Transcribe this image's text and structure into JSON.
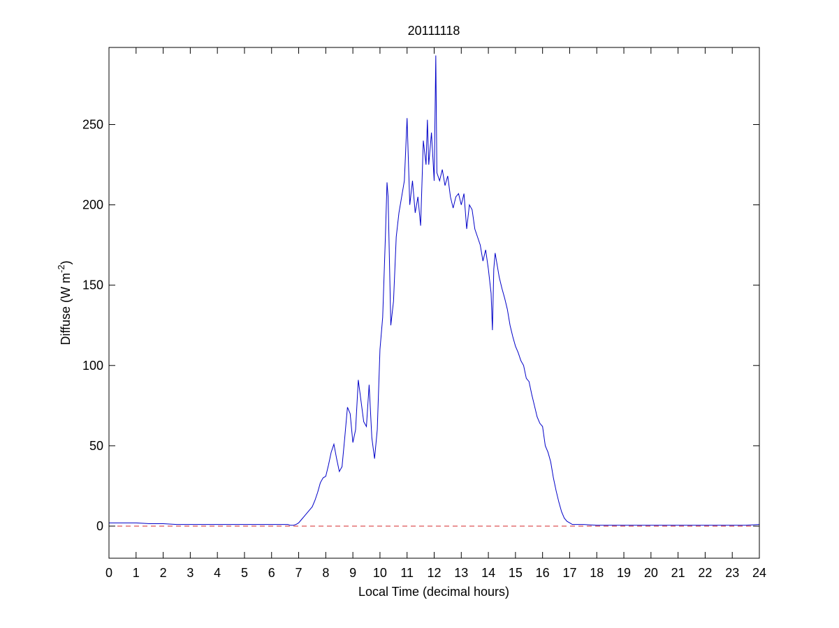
{
  "chart_data": {
    "type": "line",
    "title": "20111118",
    "xlabel": "Local Time (decimal hours)",
    "ylabel": {
      "text": "Diffuse (W m",
      "sup": "-2",
      "end": ")"
    },
    "x": [
      0,
      0.5,
      1,
      1.5,
      2,
      2.5,
      3,
      3.5,
      4,
      4.5,
      5,
      5.5,
      6,
      6.5,
      6.6,
      6.7,
      6.8,
      6.9,
      7,
      7.1,
      7.2,
      7.3,
      7.4,
      7.5,
      7.6,
      7.7,
      7.8,
      7.9,
      8,
      8.1,
      8.2,
      8.3,
      8.4,
      8.5,
      8.6,
      8.7,
      8.8,
      8.9,
      9,
      9.1,
      9.2,
      9.3,
      9.4,
      9.5,
      9.6,
      9.7,
      9.8,
      9.9,
      10,
      10.1,
      10.2,
      10.26,
      10.3,
      10.4,
      10.5,
      10.6,
      10.7,
      10.8,
      10.9,
      11,
      11.1,
      11.2,
      11.3,
      11.4,
      11.5,
      11.6,
      11.7,
      11.75,
      11.8,
      11.9,
      12,
      12.06,
      12.1,
      12.2,
      12.3,
      12.4,
      12.5,
      12.6,
      12.7,
      12.8,
      12.9,
      13,
      13.1,
      13.2,
      13.3,
      13.4,
      13.5,
      13.6,
      13.7,
      13.8,
      13.9,
      14,
      14.1,
      14.15,
      14.2,
      14.25,
      14.3,
      14.4,
      14.5,
      14.6,
      14.7,
      14.8,
      14.9,
      15,
      15.1,
      15.2,
      15.3,
      15.4,
      15.5,
      15.6,
      15.7,
      15.8,
      15.9,
      16,
      16.1,
      16.2,
      16.3,
      16.4,
      16.5,
      16.6,
      16.7,
      16.8,
      16.9,
      17,
      17.1,
      17.2,
      17.3,
      17.4,
      17.5,
      18,
      18.5,
      19,
      19.5,
      20,
      20.5,
      21,
      21.5,
      22,
      22.5,
      23,
      23.5,
      24
    ],
    "series": [
      {
        "color": "#0000c8",
        "values": [
          2,
          2,
          2,
          1.5,
          1.5,
          1,
          1,
          1,
          1,
          1,
          1,
          1,
          1,
          1,
          1,
          0.5,
          0.5,
          1,
          2,
          4,
          6,
          8,
          10,
          12,
          16,
          21,
          27,
          30,
          31,
          38,
          46,
          51,
          42,
          34,
          37,
          55,
          74,
          70,
          52,
          60,
          91,
          78,
          65,
          62,
          88,
          55,
          42,
          60,
          110,
          130,
          180,
          214,
          205,
          125,
          140,
          180,
          195,
          205,
          215,
          254,
          200,
          215,
          195,
          205,
          187,
          240,
          225,
          253,
          225,
          245,
          215,
          293,
          220,
          215,
          222,
          212,
          218,
          205,
          198,
          205,
          207,
          200,
          207,
          185,
          200,
          197,
          185,
          180,
          175,
          165,
          172,
          160,
          145,
          122,
          160,
          170,
          165,
          155,
          148,
          142,
          135,
          125,
          118,
          112,
          108,
          103,
          100,
          92,
          90,
          82,
          75,
          68,
          64,
          62,
          50,
          46,
          40,
          30,
          22,
          15,
          9,
          5,
          3,
          2,
          1,
          1,
          1,
          1,
          1,
          0.5,
          0.5,
          0.5,
          0.5,
          0.5,
          0.5,
          0.5,
          0.5,
          0.5,
          0.5,
          0.5,
          0.5,
          1
        ]
      }
    ],
    "reference_line": {
      "value": 0,
      "color": "#d62728"
    },
    "xlim": [
      0,
      24
    ],
    "xticks": [
      0,
      1,
      2,
      3,
      4,
      5,
      6,
      7,
      8,
      9,
      10,
      11,
      12,
      13,
      14,
      15,
      16,
      17,
      18,
      19,
      20,
      21,
      22,
      23,
      24
    ],
    "ylim": [
      -20,
      298
    ],
    "yticks": [
      0,
      50,
      100,
      150,
      200,
      250
    ]
  }
}
